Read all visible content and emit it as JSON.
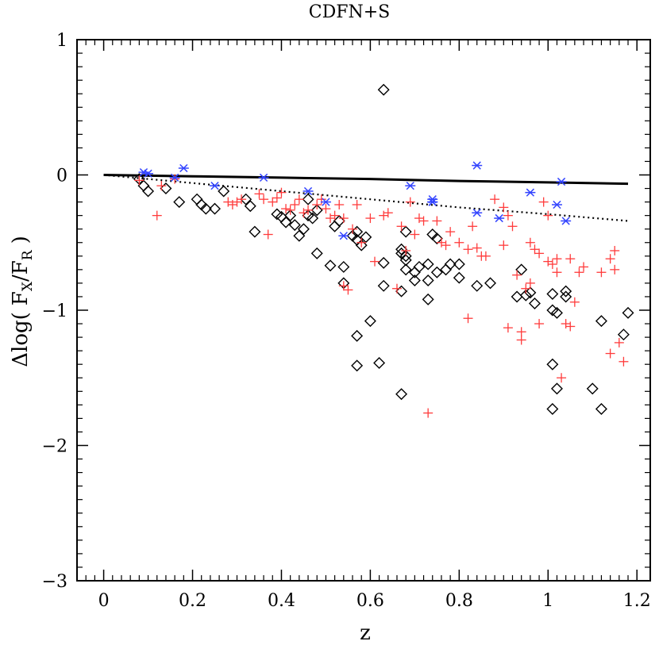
{
  "chart_data": {
    "type": "scatter",
    "title": "CDFN+S",
    "xlabel": "z",
    "ylabel": {
      "prefix": "Δlog(",
      "num": "F",
      "num_sub": "X",
      "slash": "/",
      "den": "F",
      "den_sub": "R",
      "suffix": ")"
    },
    "xlim": [
      -0.06,
      1.23
    ],
    "ylim": [
      -3,
      1
    ],
    "x_ticks": [
      0,
      0.2,
      0.4,
      0.6,
      0.8,
      1,
      1.2
    ],
    "x_tick_labels": [
      "0",
      "0.2",
      "0.4",
      "0.6",
      "0.8",
      "1",
      "1.2"
    ],
    "y_ticks": [
      -3,
      -2,
      -1,
      0,
      1
    ],
    "y_tick_labels": [
      "−3",
      "−2",
      "−1",
      "0",
      "1"
    ],
    "lines": [
      {
        "name": "solid model",
        "style": "solid",
        "color": "#000000",
        "x": [
          0,
          0.2,
          0.4,
          0.6,
          0.8,
          1.0,
          1.18
        ],
        "y": [
          0,
          -0.01,
          -0.02,
          -0.03,
          -0.045,
          -0.055,
          -0.065
        ]
      },
      {
        "name": "dotted model",
        "style": "dotted",
        "color": "#000000",
        "x": [
          0,
          0.2,
          0.4,
          0.6,
          0.8,
          1.0,
          1.18
        ],
        "y": [
          0,
          -0.06,
          -0.12,
          -0.18,
          -0.24,
          -0.29,
          -0.34
        ]
      }
    ],
    "series": [
      {
        "name": "diamonds",
        "marker": "diamond",
        "color": "#000000",
        "points": [
          [
            0.08,
            -0.03
          ],
          [
            0.09,
            -0.08
          ],
          [
            0.1,
            -0.12
          ],
          [
            0.14,
            -0.1
          ],
          [
            0.17,
            -0.2
          ],
          [
            0.21,
            -0.18
          ],
          [
            0.22,
            -0.22
          ],
          [
            0.23,
            -0.25
          ],
          [
            0.25,
            -0.25
          ],
          [
            0.27,
            -0.12
          ],
          [
            0.32,
            -0.18
          ],
          [
            0.33,
            -0.23
          ],
          [
            0.34,
            -0.42
          ],
          [
            0.39,
            -0.29
          ],
          [
            0.4,
            -0.31
          ],
          [
            0.41,
            -0.35
          ],
          [
            0.42,
            -0.3
          ],
          [
            0.43,
            -0.37
          ],
          [
            0.44,
            -0.45
          ],
          [
            0.45,
            -0.4
          ],
          [
            0.46,
            -0.3
          ],
          [
            0.46,
            -0.18
          ],
          [
            0.47,
            -0.32
          ],
          [
            0.48,
            -0.26
          ],
          [
            0.48,
            -0.58
          ],
          [
            0.51,
            -0.67
          ],
          [
            0.52,
            -0.38
          ],
          [
            0.53,
            -0.34
          ],
          [
            0.54,
            -0.68
          ],
          [
            0.54,
            -0.8
          ],
          [
            0.56,
            -0.45
          ],
          [
            0.57,
            -0.42
          ],
          [
            0.57,
            -0.48
          ],
          [
            0.58,
            -0.52
          ],
          [
            0.59,
            -0.46
          ],
          [
            0.57,
            -1.19
          ],
          [
            0.57,
            -1.41
          ],
          [
            0.6,
            -1.08
          ],
          [
            0.62,
            -1.39
          ],
          [
            0.63,
            0.63
          ],
          [
            0.63,
            -0.65
          ],
          [
            0.63,
            -0.82
          ],
          [
            0.67,
            -1.62
          ],
          [
            0.67,
            -0.55
          ],
          [
            0.67,
            -0.58
          ],
          [
            0.68,
            -0.6
          ],
          [
            0.68,
            -0.63
          ],
          [
            0.68,
            -0.42
          ],
          [
            0.68,
            -0.7
          ],
          [
            0.67,
            -0.86
          ],
          [
            0.7,
            -0.72
          ],
          [
            0.7,
            -0.78
          ],
          [
            0.71,
            -0.68
          ],
          [
            0.73,
            -0.66
          ],
          [
            0.73,
            -0.78
          ],
          [
            0.74,
            -0.44
          ],
          [
            0.75,
            -0.47
          ],
          [
            0.75,
            -0.72
          ],
          [
            0.77,
            -0.7
          ],
          [
            0.78,
            -0.66
          ],
          [
            0.8,
            -0.66
          ],
          [
            0.8,
            -0.76
          ],
          [
            0.84,
            -0.82
          ],
          [
            0.87,
            -0.8
          ],
          [
            0.73,
            -0.92
          ],
          [
            0.93,
            -0.9
          ],
          [
            0.94,
            -0.7
          ],
          [
            0.95,
            -0.89
          ],
          [
            0.96,
            -0.87
          ],
          [
            0.97,
            -0.95
          ],
          [
            1.01,
            -0.88
          ],
          [
            1.01,
            -1.0
          ],
          [
            1.02,
            -1.02
          ],
          [
            1.01,
            -1.4
          ],
          [
            1.02,
            -1.58
          ],
          [
            1.01,
            -1.73
          ],
          [
            1.04,
            -0.86
          ],
          [
            1.04,
            -0.9
          ],
          [
            1.1,
            -1.58
          ],
          [
            1.12,
            -1.08
          ],
          [
            1.12,
            -1.73
          ],
          [
            1.17,
            -1.18
          ],
          [
            1.18,
            -1.02
          ]
        ]
      },
      {
        "name": "plus",
        "marker": "plus",
        "color": "#ff3b3b",
        "points": [
          [
            0.08,
            -0.04
          ],
          [
            0.12,
            -0.3
          ],
          [
            0.13,
            -0.08
          ],
          [
            0.16,
            -0.03
          ],
          [
            0.28,
            -0.2
          ],
          [
            0.29,
            -0.22
          ],
          [
            0.3,
            -0.2
          ],
          [
            0.31,
            -0.18
          ],
          [
            0.35,
            -0.14
          ],
          [
            0.36,
            -0.18
          ],
          [
            0.37,
            -0.44
          ],
          [
            0.38,
            -0.2
          ],
          [
            0.39,
            -0.17
          ],
          [
            0.4,
            -0.13
          ],
          [
            0.41,
            -0.25
          ],
          [
            0.42,
            -0.26
          ],
          [
            0.43,
            -0.22
          ],
          [
            0.44,
            -0.18
          ],
          [
            0.45,
            -0.28
          ],
          [
            0.46,
            -0.26
          ],
          [
            0.48,
            -0.22
          ],
          [
            0.49,
            -0.18
          ],
          [
            0.5,
            -0.25
          ],
          [
            0.51,
            -0.32
          ],
          [
            0.52,
            -0.3
          ],
          [
            0.53,
            -0.22
          ],
          [
            0.54,
            -0.82
          ],
          [
            0.54,
            -0.32
          ],
          [
            0.55,
            -0.85
          ],
          [
            0.56,
            -0.4
          ],
          [
            0.57,
            -0.22
          ],
          [
            0.58,
            -0.5
          ],
          [
            0.6,
            -0.32
          ],
          [
            0.61,
            -0.64
          ],
          [
            0.63,
            -0.3
          ],
          [
            0.64,
            -0.28
          ],
          [
            0.66,
            -0.84
          ],
          [
            0.67,
            -0.38
          ],
          [
            0.68,
            -0.56
          ],
          [
            0.69,
            -0.2
          ],
          [
            0.7,
            -0.44
          ],
          [
            0.71,
            -0.32
          ],
          [
            0.72,
            -0.34
          ],
          [
            0.73,
            -1.76
          ],
          [
            0.75,
            -0.34
          ],
          [
            0.76,
            -0.5
          ],
          [
            0.77,
            -0.52
          ],
          [
            0.78,
            -0.42
          ],
          [
            0.8,
            -0.5
          ],
          [
            0.82,
            -0.55
          ],
          [
            0.82,
            -1.06
          ],
          [
            0.83,
            -0.38
          ],
          [
            0.84,
            -0.54
          ],
          [
            0.85,
            -0.6
          ],
          [
            0.86,
            -0.6
          ],
          [
            0.88,
            -0.18
          ],
          [
            0.9,
            -0.52
          ],
          [
            0.9,
            -0.24
          ],
          [
            0.91,
            -0.3
          ],
          [
            0.91,
            -1.13
          ],
          [
            0.92,
            -0.38
          ],
          [
            0.93,
            -0.74
          ],
          [
            0.94,
            -1.16
          ],
          [
            0.94,
            -1.22
          ],
          [
            0.95,
            -0.84
          ],
          [
            0.96,
            -0.8
          ],
          [
            0.96,
            -0.5
          ],
          [
            0.97,
            -0.55
          ],
          [
            0.98,
            -1.1
          ],
          [
            0.98,
            -0.58
          ],
          [
            0.99,
            -0.2
          ],
          [
            1.0,
            -0.64
          ],
          [
            1.0,
            -0.3
          ],
          [
            1.01,
            -0.66
          ],
          [
            1.02,
            -0.62
          ],
          [
            1.02,
            -0.72
          ],
          [
            1.03,
            -1.5
          ],
          [
            1.04,
            -1.1
          ],
          [
            1.05,
            -0.62
          ],
          [
            1.06,
            -0.94
          ],
          [
            1.07,
            -0.72
          ],
          [
            1.08,
            -0.68
          ],
          [
            1.12,
            -0.72
          ],
          [
            1.14,
            -1.32
          ],
          [
            1.14,
            -0.62
          ],
          [
            1.15,
            -0.56
          ],
          [
            1.16,
            -1.24
          ],
          [
            1.17,
            -1.38
          ],
          [
            1.15,
            -0.7
          ],
          [
            1.05,
            -1.12
          ]
        ]
      },
      {
        "name": "asterisks",
        "marker": "asterisk",
        "color": "#3344ff",
        "points": [
          [
            0.09,
            0.02
          ],
          [
            0.1,
            0.01
          ],
          [
            0.16,
            -0.02
          ],
          [
            0.18,
            0.05
          ],
          [
            0.25,
            -0.08
          ],
          [
            0.36,
            -0.02
          ],
          [
            0.46,
            -0.12
          ],
          [
            0.5,
            -0.2
          ],
          [
            0.54,
            -0.45
          ],
          [
            0.69,
            -0.08
          ],
          [
            0.74,
            -0.18
          ],
          [
            0.74,
            -0.2
          ],
          [
            0.74,
            -0.2
          ],
          [
            0.84,
            0.07
          ],
          [
            0.84,
            -0.28
          ],
          [
            0.89,
            -0.32
          ],
          [
            0.96,
            -0.13
          ],
          [
            1.02,
            -0.22
          ],
          [
            1.03,
            -0.05
          ],
          [
            1.04,
            -0.34
          ]
        ]
      }
    ]
  }
}
